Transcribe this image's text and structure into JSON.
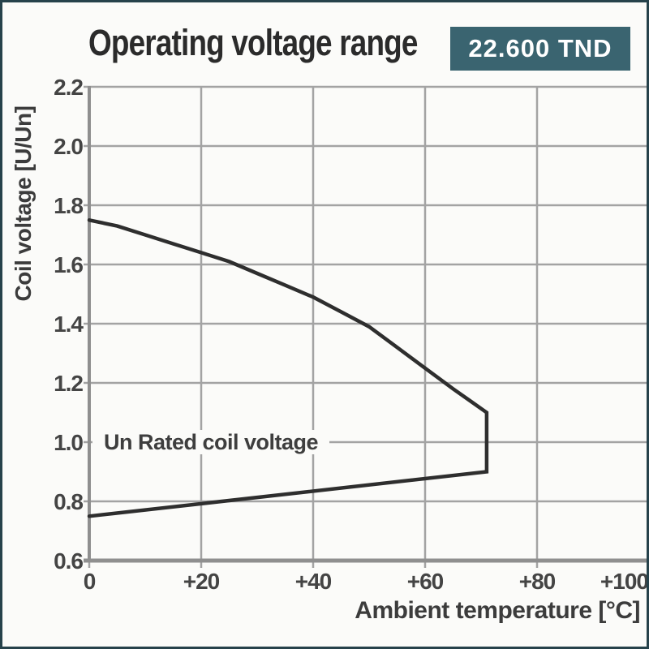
{
  "header": {
    "title": "Operating voltage range",
    "price_badge": "22.600 TND"
  },
  "colors": {
    "frame_border": "#26424b",
    "badge_bg": "#3a6470",
    "badge_text": "#ffffff",
    "grid": "#a3a3a3",
    "axis": "#8f8f8f",
    "curve": "#2e2e2e",
    "tick_text": "#444444"
  },
  "chart_data": {
    "type": "line",
    "title": "Operating voltage range",
    "xlabel": "Ambient temperature [°C]",
    "ylabel": "Coil voltage [U/Un]",
    "xlim": [
      0,
      100
    ],
    "ylim": [
      0.6,
      2.2
    ],
    "grid": true,
    "legend": "none",
    "annotation": "Un Rated coil voltage",
    "x_ticks": [
      {
        "value": 0,
        "label": "0"
      },
      {
        "value": 20,
        "label": "+20"
      },
      {
        "value": 40,
        "label": "+40"
      },
      {
        "value": 60,
        "label": "+60"
      },
      {
        "value": 80,
        "label": "+80"
      },
      {
        "value": 100,
        "label": "+100"
      }
    ],
    "y_ticks": [
      {
        "value": 2.2,
        "label": "2.2"
      },
      {
        "value": 2.0,
        "label": "2.0"
      },
      {
        "value": 1.8,
        "label": "1.8"
      },
      {
        "value": 1.6,
        "label": "1.6"
      },
      {
        "value": 1.4,
        "label": "1.4"
      },
      {
        "value": 1.2,
        "label": "1.2"
      },
      {
        "value": 1.0,
        "label": "1.0"
      },
      {
        "value": 0.8,
        "label": "0.8"
      },
      {
        "value": 0.6,
        "label": "0.6"
      }
    ],
    "series": [
      {
        "name": "operating-range-envelope",
        "points": [
          [
            0,
            1.75
          ],
          [
            5,
            1.73
          ],
          [
            10,
            1.7
          ],
          [
            15,
            1.67
          ],
          [
            20,
            1.64
          ],
          [
            25,
            1.61
          ],
          [
            30,
            1.57
          ],
          [
            35,
            1.53
          ],
          [
            40,
            1.49
          ],
          [
            45,
            1.44
          ],
          [
            50,
            1.39
          ],
          [
            55,
            1.32
          ],
          [
            60,
            1.25
          ],
          [
            65,
            1.18
          ],
          [
            68,
            1.14
          ],
          [
            71,
            1.1
          ],
          [
            71,
            0.9
          ],
          [
            0,
            0.75
          ]
        ]
      }
    ]
  }
}
